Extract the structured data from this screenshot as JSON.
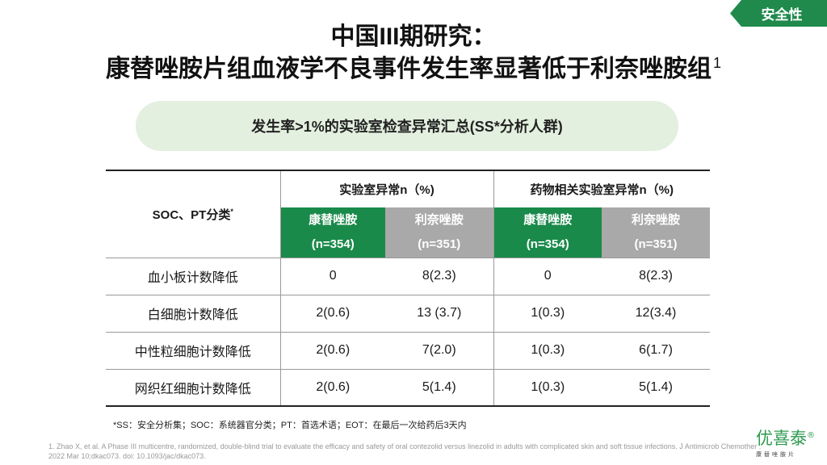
{
  "tag": "安全性",
  "title": {
    "line1": "中国III期研究：",
    "line2": "康替唑胺片组血液学不良事件发生率显著低于利奈唑胺组",
    "ref_mark": "1"
  },
  "subtitle": "发生率>1%的实验室检查异常汇总(SS*分析人群)",
  "table": {
    "soc_header": "SOC、PT分类",
    "soc_mark": "*",
    "groups": [
      "实验室异常n（%)",
      "药物相关实验室异常n（%)"
    ],
    "subheaders": [
      {
        "name": "康替唑胺",
        "n": "(n=354)"
      },
      {
        "name": "利奈唑胺",
        "n": "(n=351)"
      },
      {
        "name": "康替唑胺",
        "n": "(n=354)"
      },
      {
        "name": "利奈唑胺",
        "n": "(n=351)"
      }
    ],
    "rows": [
      {
        "label": "血小板计数降低",
        "values": [
          "0",
          "8(2.3)",
          "0",
          "8(2.3)"
        ]
      },
      {
        "label": "白细胞计数降低",
        "values": [
          "2(0.6)",
          "13 (3.7)",
          "1(0.3)",
          "12(3.4)"
        ]
      },
      {
        "label": "中性粒细胞计数降低",
        "values": [
          "2(0.6)",
          "7(2.0)",
          "1(0.3)",
          "6(1.7)"
        ]
      },
      {
        "label": "网织红细胞计数降低",
        "values": [
          "2(0.6)",
          "5(1.4)",
          "1(0.3)",
          "5(1.4)"
        ]
      }
    ]
  },
  "footnote": "*SS：安全分析集；SOC：系统器官分类；PT：首选术语；EOT：在最后一次给药后3天内",
  "reference": "1. Zhao X, et al. A Phase III multicentre, randomized, double-blind trial to evaluate the efficacy and safety of oral contezolid versus linezolid in adults with complicated skin and soft tissue infections. J Antimicrob Chemother . 2022 Mar 10;dkac073. doi: 10.1093/jac/dkac073.",
  "brand": {
    "name": "优喜泰",
    "reg": "®",
    "sub": "康替唑胺片"
  },
  "colors": {
    "green": "#1a8a4a",
    "gray": "#a9a9a9",
    "pill": "#e3efdf"
  }
}
